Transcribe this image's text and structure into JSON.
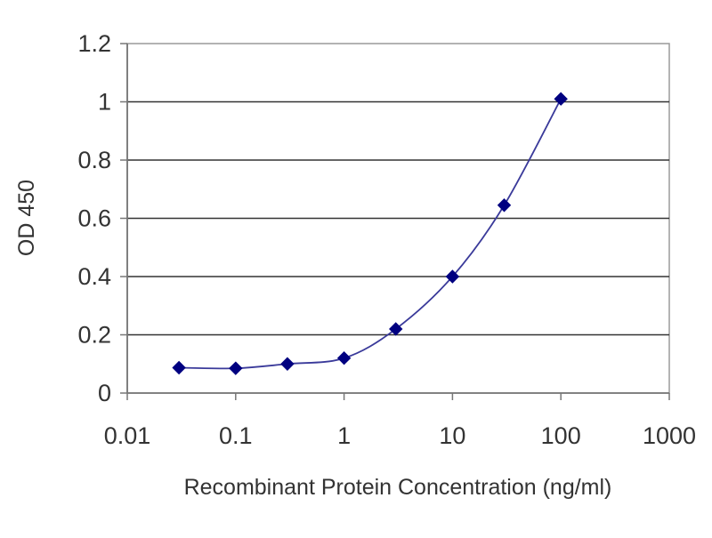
{
  "chart_data": {
    "type": "line",
    "title": "",
    "xlabel": "Recombinant Protein Concentration (ng/ml)",
    "ylabel": "OD 450",
    "xscale": "log",
    "xlim": [
      0.01,
      1000
    ],
    "ylim": [
      0,
      1.2
    ],
    "x_ticks": [
      0.01,
      0.1,
      1,
      10,
      100,
      1000
    ],
    "x_tick_labels": [
      "0.01",
      "0.1",
      "1",
      "10",
      "100",
      "1000"
    ],
    "y_ticks": [
      0,
      0.2,
      0.4,
      0.6,
      0.8,
      1,
      1.2
    ],
    "y_tick_labels": [
      "0",
      "0.2",
      "0.4",
      "0.6",
      "0.8",
      "1",
      "1.2"
    ],
    "grid": "horizontal",
    "legend": "none",
    "series": [
      {
        "x": [
          0.03,
          0.1,
          0.3,
          1,
          3,
          10,
          30,
          100
        ],
        "y": [
          0.087,
          0.085,
          0.1,
          0.12,
          0.22,
          0.4,
          0.645,
          1.01
        ],
        "color": "#3a3a9a",
        "marker_color": "#000080"
      }
    ]
  }
}
